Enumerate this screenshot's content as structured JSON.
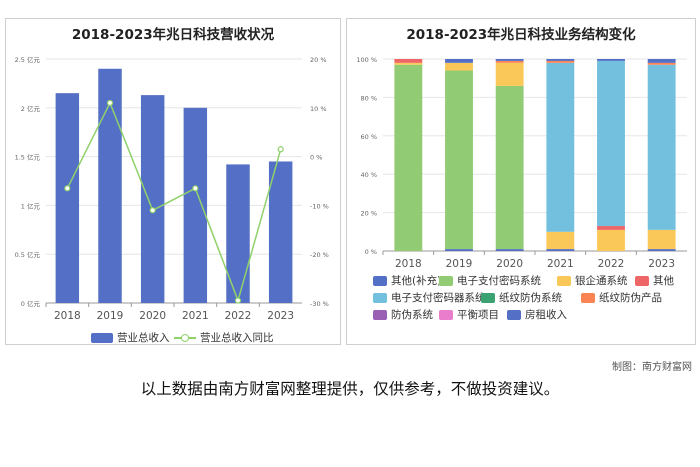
{
  "left_chart": {
    "title": "2018-2023年兆日科技营收状况",
    "legend": [
      "营业总收入",
      "营业总收入同比"
    ],
    "colors": {
      "bar": "#5470c6",
      "line": "#8fd16a",
      "axis_text": "#666666",
      "grid": "#e6e6e6"
    }
  },
  "right_chart": {
    "title": "2018-2023年兆日科技业务结构变化",
    "legend": [
      "其他(补充)",
      "电子支付密码系统",
      "银企通系统",
      "其他",
      "电子支付密码器系统",
      "纸纹防伪系统",
      "纸纹防伪产品",
      "防伪系统",
      "平衡项目",
      "房租收入"
    ],
    "colors": [
      "#5470c6",
      "#91cc75",
      "#fac858",
      "#ee6666",
      "#73c0de",
      "#3ba272",
      "#fc8452",
      "#9a60b4",
      "#ea7ccc",
      "#5470c6"
    ]
  },
  "credit": "制图：南方财富网",
  "disclaimer": "以上数据由南方财富网整理提供，仅供参考，不做投资建议。",
  "chart_data": [
    {
      "type": "bar",
      "title": "2018-2023年兆日科技营收状况",
      "categories": [
        "2018",
        "2019",
        "2020",
        "2021",
        "2022",
        "2023"
      ],
      "y_ticks": [
        "0 亿元",
        "0.5 亿元",
        "1 亿元",
        "1.5 亿元",
        "2 亿元",
        "2.5 亿元"
      ],
      "y2_ticks": [
        "-30 %",
        "-20 %",
        "-10 %",
        "0 %",
        "10 %",
        "20 %"
      ],
      "ylim": [
        0,
        2.5
      ],
      "y2lim": [
        -30,
        20
      ],
      "series": [
        {
          "name": "营业总收入",
          "type": "bar",
          "axis": "left",
          "values": [
            2.15,
            2.4,
            2.13,
            2.0,
            1.42,
            1.45
          ]
        },
        {
          "name": "营业总收入同比",
          "type": "line",
          "axis": "right",
          "values": [
            -6.5,
            11.0,
            -11.0,
            -6.5,
            -29.5,
            1.5
          ]
        }
      ]
    },
    {
      "type": "bar",
      "stacked": true,
      "title": "2018-2023年兆日科技业务结构变化",
      "categories": [
        "2018",
        "2019",
        "2020",
        "2021",
        "2022",
        "2023"
      ],
      "y_ticks": [
        "0 %",
        "20 %",
        "40 %",
        "60 %",
        "80 %",
        "100 %"
      ],
      "ylim": [
        0,
        100
      ],
      "series": [
        {
          "name": "其他(补充)",
          "values": [
            0,
            1,
            1,
            1,
            0,
            1
          ]
        },
        {
          "name": "电子支付密码系统",
          "values": [
            97,
            93,
            85,
            0,
            0,
            0
          ]
        },
        {
          "name": "银企通系统",
          "values": [
            1,
            4,
            12,
            9,
            11,
            10
          ]
        },
        {
          "name": "其他",
          "values": [
            2,
            0,
            0,
            0,
            2,
            0
          ]
        },
        {
          "name": "电子支付密码器系统",
          "values": [
            0,
            0,
            0,
            88,
            86,
            86
          ]
        },
        {
          "name": "纸纹防伪系统",
          "values": [
            0,
            0,
            0,
            0,
            0,
            0
          ]
        },
        {
          "name": "纸纹防伪产品",
          "values": [
            0,
            0,
            1,
            1,
            0,
            1
          ]
        },
        {
          "name": "防伪系统",
          "values": [
            0,
            0,
            0,
            0,
            0,
            0
          ]
        },
        {
          "name": "平衡项目",
          "values": [
            0,
            0,
            0,
            0,
            0,
            0
          ]
        },
        {
          "name": "房租收入",
          "values": [
            0,
            2,
            1,
            1,
            1,
            2
          ]
        }
      ]
    }
  ]
}
